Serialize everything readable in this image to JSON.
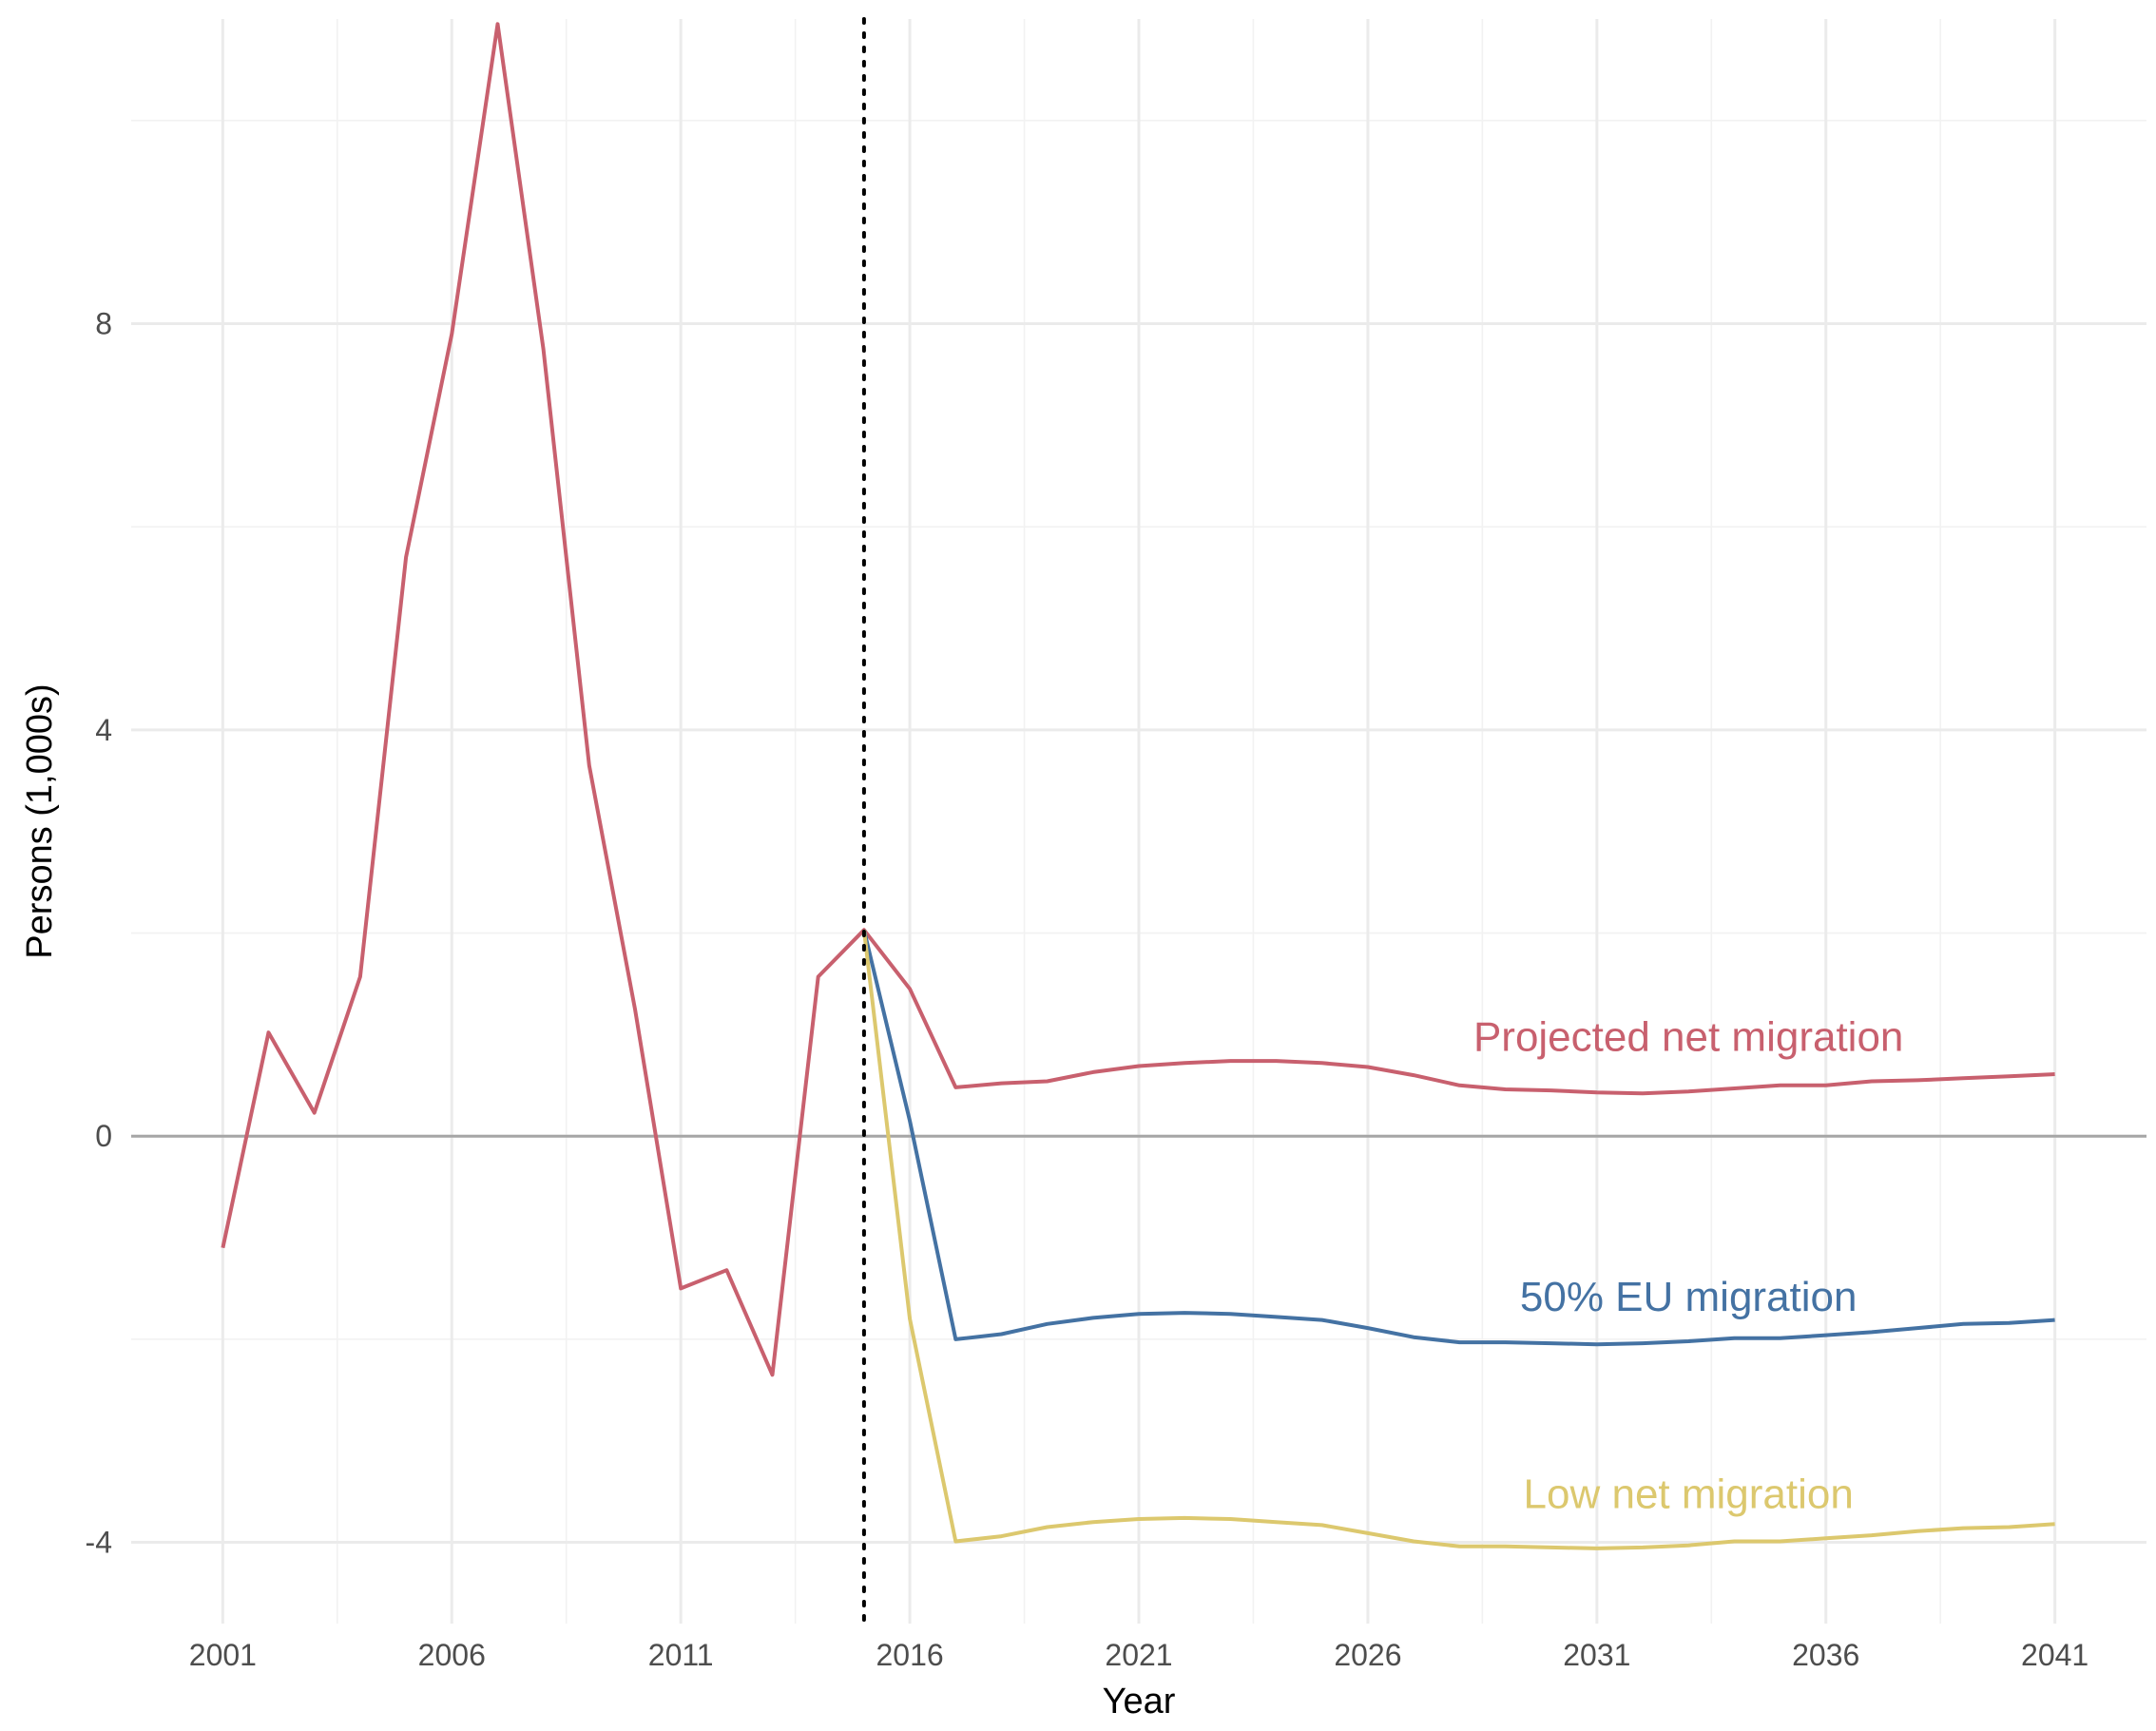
{
  "chart_data": {
    "type": "line",
    "title": "",
    "xlabel": "Year",
    "ylabel": "Persons (1,000s)",
    "xlim": [
      1999,
      2043
    ],
    "ylim": [
      -4.8,
      11.0
    ],
    "x_ticks": [
      "2001",
      "2006",
      "2011",
      "2016",
      "2021",
      "2026",
      "2031",
      "2036",
      "2041"
    ],
    "y_ticks": [
      "-4",
      "0",
      "4",
      "8"
    ],
    "y_tick_values": [
      -4,
      0,
      4,
      8
    ],
    "grid": true,
    "reference_line": {
      "x": 2015,
      "style": "dotted"
    },
    "series": [
      {
        "name": "Projected net migration",
        "color": "#c8606e",
        "x": [
          2001,
          2002,
          2003,
          2004,
          2005,
          2006,
          2007,
          2008,
          2009,
          2010,
          2011,
          2012,
          2013,
          2014,
          2015,
          2016,
          2017,
          2018,
          2019,
          2020,
          2021,
          2022,
          2023,
          2024,
          2025,
          2026,
          2027,
          2028,
          2029,
          2030,
          2031,
          2032,
          2033,
          2034,
          2035,
          2036,
          2037,
          2038,
          2039,
          2040,
          2041
        ],
        "values": [
          -1.1,
          1.02,
          0.23,
          1.57,
          5.7,
          7.9,
          10.95,
          7.75,
          3.65,
          1.25,
          -1.5,
          -1.32,
          -2.35,
          1.57,
          2.03,
          1.45,
          0.48,
          0.52,
          0.54,
          0.63,
          0.69,
          0.72,
          0.74,
          0.74,
          0.72,
          0.68,
          0.6,
          0.5,
          0.46,
          0.45,
          0.43,
          0.42,
          0.44,
          0.47,
          0.5,
          0.5,
          0.54,
          0.55,
          0.57,
          0.59,
          0.61
        ]
      },
      {
        "name": "50% EU migration",
        "color": "#4472a3",
        "x": [
          2015,
          2016,
          2017,
          2018,
          2019,
          2020,
          2021,
          2022,
          2023,
          2024,
          2025,
          2026,
          2027,
          2028,
          2029,
          2030,
          2031,
          2032,
          2033,
          2034,
          2035,
          2036,
          2037,
          2038,
          2039,
          2040,
          2041
        ],
        "values": [
          2.03,
          0.15,
          -2.0,
          -1.95,
          -1.85,
          -1.79,
          -1.75,
          -1.74,
          -1.75,
          -1.78,
          -1.81,
          -1.89,
          -1.98,
          -2.03,
          -2.03,
          -2.04,
          -2.05,
          -2.04,
          -2.02,
          -1.99,
          -1.99,
          -1.96,
          -1.93,
          -1.89,
          -1.85,
          -1.84,
          -1.81
        ]
      },
      {
        "name": "Low net migration",
        "color": "#dcc86e",
        "x": [
          2015,
          2016,
          2017,
          2018,
          2019,
          2020,
          2021,
          2022,
          2023,
          2024,
          2025,
          2026,
          2027,
          2028,
          2029,
          2030,
          2031,
          2032,
          2033,
          2034,
          2035,
          2036,
          2037,
          2038,
          2039,
          2040,
          2041
        ],
        "values": [
          2.03,
          -1.8,
          -3.99,
          -3.94,
          -3.85,
          -3.8,
          -3.77,
          -3.76,
          -3.77,
          -3.8,
          -3.83,
          -3.91,
          -3.99,
          -4.04,
          -4.04,
          -4.05,
          -4.06,
          -4.05,
          -4.03,
          -3.99,
          -3.99,
          -3.96,
          -3.93,
          -3.89,
          -3.86,
          -3.85,
          -3.82
        ]
      }
    ],
    "annotations": [
      {
        "text": "Projected net migration",
        "series": 0,
        "color": "#c8606e",
        "x": 2033.0,
        "y": 0.98
      },
      {
        "text": "50% EU migration",
        "series": 1,
        "color": "#4472a3",
        "x": 2033.0,
        "y": -1.58
      },
      {
        "text": "Low net migration",
        "series": 2,
        "color": "#dcc86e",
        "x": 2033.0,
        "y": -3.52
      }
    ]
  }
}
